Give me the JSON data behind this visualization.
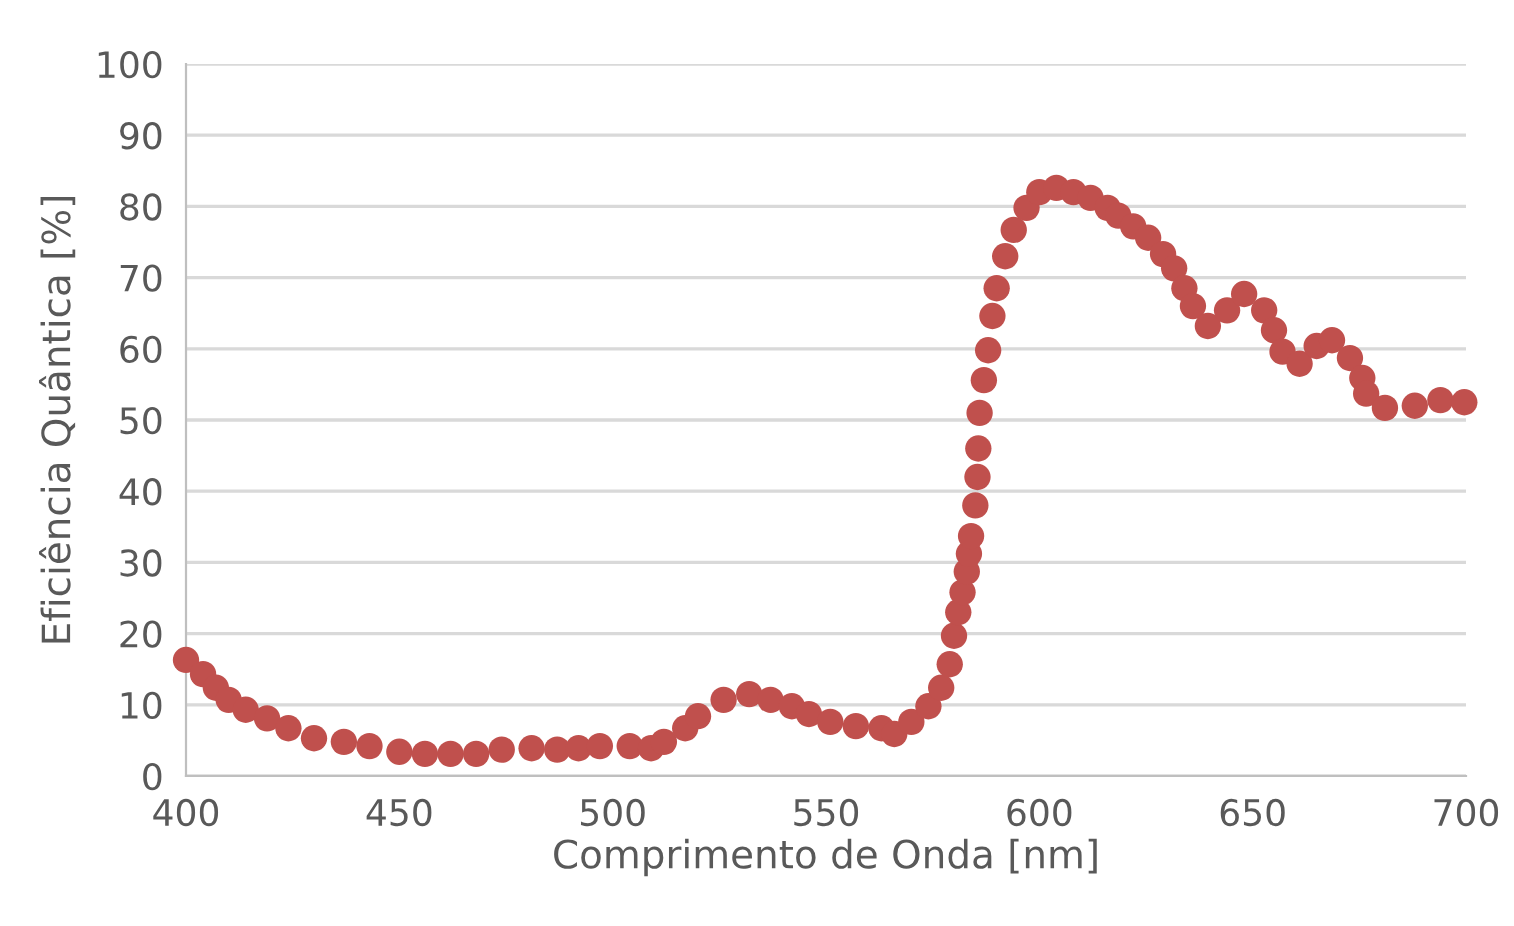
{
  "chart_data": {
    "type": "scatter",
    "xlabel": "Comprimento de Onda [nm]",
    "ylabel": "Eficiência Quântica [%]",
    "xlim": [
      400,
      700
    ],
    "xticks": [
      400,
      450,
      500,
      550,
      600,
      650,
      700
    ],
    "ylim": [
      0,
      100
    ],
    "yticks": [
      0,
      10,
      20,
      30,
      40,
      50,
      60,
      70,
      80,
      90,
      100
    ],
    "grid": "y",
    "marker": "circle",
    "series": [
      {
        "color": "#c0504d",
        "x": [
          400,
          404,
          407,
          410,
          414,
          419,
          424,
          430,
          437,
          443,
          450,
          456,
          462,
          468,
          474,
          481,
          487,
          492,
          497,
          504,
          509,
          512,
          517,
          520,
          526,
          532,
          537,
          542,
          546,
          551,
          557,
          563,
          566,
          570,
          574,
          577,
          579,
          580,
          581,
          582,
          583,
          583.5,
          584,
          585,
          585.5,
          585.7,
          586,
          587,
          588,
          589,
          590,
          592,
          594,
          597,
          600,
          604,
          608,
          612,
          616,
          618.5,
          622,
          625.5,
          629,
          631.6,
          634,
          636,
          639.5,
          644,
          648,
          652.7,
          655,
          657,
          661,
          665,
          668.6,
          672.8,
          675.7,
          676.6,
          681,
          688,
          694,
          699.6
        ],
        "values": [
          16.3,
          14.3,
          12.4,
          10.7,
          9.3,
          8.1,
          6.7,
          5.3,
          4.8,
          4.2,
          3.4,
          3.1,
          3.1,
          3.1,
          3.7,
          3.9,
          3.7,
          3.9,
          4.2,
          4.2,
          3.9,
          4.8,
          6.7,
          8.4,
          10.7,
          11.5,
          10.7,
          9.8,
          8.7,
          7.6,
          7.0,
          6.7,
          5.9,
          7.6,
          9.8,
          12.4,
          15.7,
          19.7,
          23,
          25.8,
          28.7,
          31.2,
          33.7,
          38,
          42,
          46,
          51,
          55.6,
          59.8,
          64.6,
          68.5,
          73,
          76.7,
          79.8,
          82,
          82.6,
          82,
          81.2,
          79.8,
          78.7,
          77.2,
          75.6,
          73.3,
          71.3,
          68.5,
          66,
          63.2,
          65.4,
          67.7,
          65.4,
          62.6,
          59.6,
          57.9,
          60.4,
          61.2,
          58.7,
          55.9,
          53.7,
          51.7,
          52,
          52.8,
          52.5
        ]
      }
    ]
  }
}
